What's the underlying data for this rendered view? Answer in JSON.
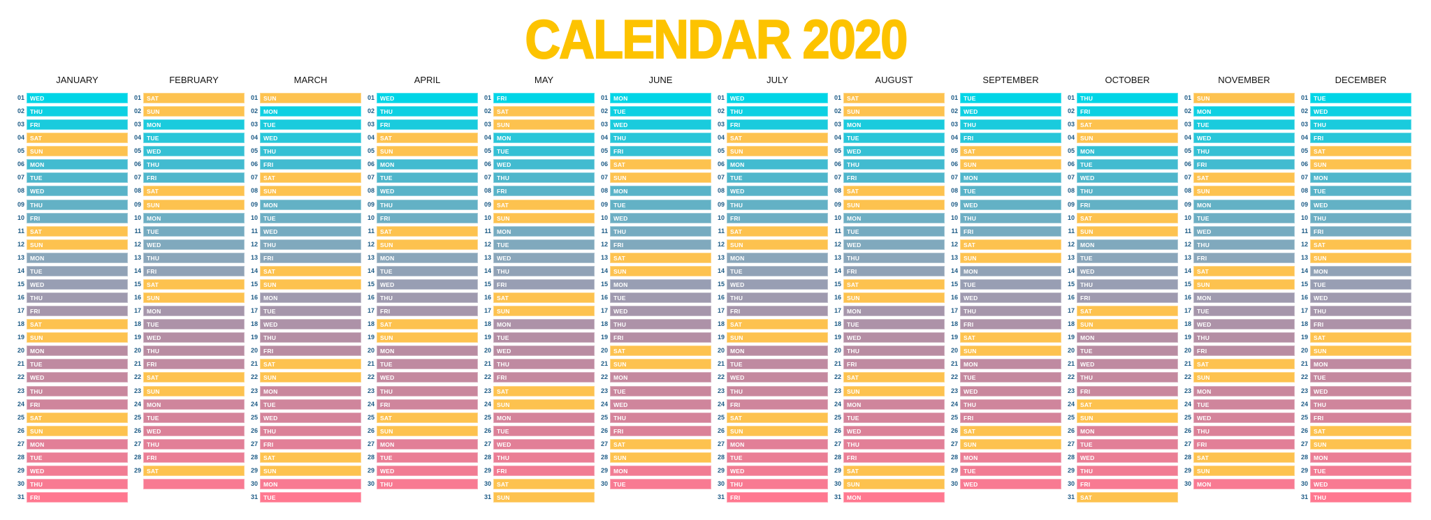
{
  "title": "CALENDAR 2020",
  "colors": {
    "title": "#fdc300",
    "weekend": "#fdc24f",
    "weekday_gradient": [
      "#00d5e6",
      "#4fb6cb",
      "#8aa6ba",
      "#b48ea4",
      "#d4839a",
      "#ff7890"
    ],
    "day_number": "#1d5b86"
  },
  "numbers": [
    "01",
    "02",
    "03",
    "04",
    "05",
    "06",
    "07",
    "08",
    "09",
    "10",
    "11",
    "12",
    "13",
    "14",
    "15",
    "16",
    "17",
    "18",
    "19",
    "20",
    "21",
    "22",
    "23",
    "24",
    "25",
    "26",
    "27",
    "28",
    "29",
    "30",
    "31"
  ],
  "months": [
    {
      "name": "JANUARY",
      "days": [
        "WED",
        "THU",
        "FRI",
        "SAT",
        "SUN",
        "MON",
        "TUE",
        "WED",
        "THU",
        "FRI",
        "SAT",
        "SUN",
        "MON",
        "TUE",
        "WED",
        "THU",
        "FRI",
        "SAT",
        "SUN",
        "MON",
        "TUE",
        "WED",
        "THU",
        "FRI",
        "SAT",
        "SUN",
        "MON",
        "TUE",
        "WED",
        "THU",
        "FRI"
      ]
    },
    {
      "name": "FEBRUARY",
      "days": [
        "SAT",
        "SUN",
        "MON",
        "TUE",
        "WED",
        "THU",
        "FRI",
        "SAT",
        "SUN",
        "MON",
        "TUE",
        "WED",
        "THU",
        "FRI",
        "SAT",
        "SUN",
        "MON",
        "TUE",
        "WED",
        "THU",
        "FRI",
        "SAT",
        "SUN",
        "MON",
        "TUE",
        "WED",
        "THU",
        "FRI",
        "SAT",
        ""
      ]
    },
    {
      "name": "MARCH",
      "days": [
        "SUN",
        "MON",
        "TUE",
        "WED",
        "THU",
        "FRI",
        "SAT",
        "SUN",
        "MON",
        "TUE",
        "WED",
        "THU",
        "FRI",
        "SAT",
        "SUN",
        "MON",
        "TUE",
        "WED",
        "THU",
        "FRI",
        "SAT",
        "SUN",
        "MON",
        "TUE",
        "WED",
        "THU",
        "FRI",
        "SAT",
        "SUN",
        "MON",
        "TUE"
      ]
    },
    {
      "name": "APRIL",
      "days": [
        "WED",
        "THU",
        "FRI",
        "SAT",
        "SUN",
        "MON",
        "TUE",
        "WED",
        "THU",
        "FRI",
        "SAT",
        "SUN",
        "MON",
        "TUE",
        "WED",
        "THU",
        "FRI",
        "SAT",
        "SUN",
        "MON",
        "TUE",
        "WED",
        "THU",
        "FRI",
        "SAT",
        "SUN",
        "MON",
        "TUE",
        "WED",
        "THU"
      ]
    },
    {
      "name": "MAY",
      "days": [
        "FRI",
        "SAT",
        "SUN",
        "MON",
        "TUE",
        "WED",
        "THU",
        "FRI",
        "SAT",
        "SUN",
        "MON",
        "TUE",
        "WED",
        "THU",
        "FRI",
        "SAT",
        "SUN",
        "MON",
        "TUE",
        "WED",
        "THU",
        "FRI",
        "SAT",
        "SUN",
        "MON",
        "TUE",
        "WED",
        "THU",
        "FRI",
        "SAT",
        "SUN"
      ]
    },
    {
      "name": "JUNE",
      "days": [
        "MON",
        "TUE",
        "WED",
        "THU",
        "FRI",
        "SAT",
        "SUN",
        "MON",
        "TUE",
        "WED",
        "THU",
        "FRI",
        "SAT",
        "SUN",
        "MON",
        "TUE",
        "WED",
        "THU",
        "FRI",
        "SAT",
        "SUN",
        "MON",
        "TUE",
        "WED",
        "THU",
        "FRI",
        "SAT",
        "SUN",
        "MON",
        "TUE"
      ]
    },
    {
      "name": "JULY",
      "days": [
        "WED",
        "THU",
        "FRI",
        "SAT",
        "SUN",
        "MON",
        "TUE",
        "WED",
        "THU",
        "FRI",
        "SAT",
        "SUN",
        "MON",
        "TUE",
        "WED",
        "THU",
        "FRI",
        "SAT",
        "SUN",
        "MON",
        "TUE",
        "WED",
        "THU",
        "FRI",
        "SAT",
        "SUN",
        "MON",
        "TUE",
        "WED",
        "THU",
        "FRI"
      ]
    },
    {
      "name": "AUGUST",
      "days": [
        "SAT",
        "SUN",
        "MON",
        "TUE",
        "WED",
        "THU",
        "FRI",
        "SAT",
        "SUN",
        "MON",
        "TUE",
        "WED",
        "THU",
        "FRI",
        "SAT",
        "SUN",
        "MON",
        "TUE",
        "WED",
        "THU",
        "FRI",
        "SAT",
        "SUN",
        "MON",
        "TUE",
        "WED",
        "THU",
        "FRI",
        "SAT",
        "SUN",
        "MON"
      ]
    },
    {
      "name": "SEPTEMBER",
      "days": [
        "TUE",
        "WED",
        "THU",
        "FRI",
        "SAT",
        "SUN",
        "MON",
        "TUE",
        "WED",
        "THU",
        "FRI",
        "SAT",
        "SUN",
        "MON",
        "TUE",
        "WED",
        "THU",
        "FRI",
        "SAT",
        "SUN",
        "MON",
        "TUE",
        "WED",
        "THU",
        "FRI",
        "SAT",
        "SUN",
        "MON",
        "TUE",
        "WED"
      ]
    },
    {
      "name": "OCTOBER",
      "days": [
        "THU",
        "FRI",
        "SAT",
        "SUN",
        "MON",
        "TUE",
        "WED",
        "THU",
        "FRI",
        "SAT",
        "SUN",
        "MON",
        "TUE",
        "WED",
        "THU",
        "FRI",
        "SAT",
        "SUN",
        "MON",
        "TUE",
        "WED",
        "THU",
        "FRI",
        "SAT",
        "SUN",
        "MON",
        "TUE",
        "WED",
        "THU",
        "FRI",
        "SAT"
      ]
    },
    {
      "name": "NOVEMBER",
      "days": [
        "SUN",
        "MON",
        "TUE",
        "WED",
        "THU",
        "FRI",
        "SAT",
        "SUN",
        "MON",
        "TUE",
        "WED",
        "THU",
        "FRI",
        "SAT",
        "SUN",
        "MON",
        "TUE",
        "WED",
        "THU",
        "FRI",
        "SAT",
        "SUN",
        "MON",
        "TUE",
        "WED",
        "THU",
        "FRI",
        "SAT",
        "SUN",
        "MON"
      ]
    },
    {
      "name": "DECEMBER",
      "days": [
        "TUE",
        "WED",
        "THU",
        "FRI",
        "SAT",
        "SUN",
        "MON",
        "TUE",
        "WED",
        "THU",
        "FRI",
        "SAT",
        "SUN",
        "MON",
        "TUE",
        "WED",
        "THU",
        "FRI",
        "SAT",
        "SUN",
        "MON",
        "TUE",
        "WED",
        "THU",
        "FRI",
        "SAT",
        "SUN",
        "MON",
        "TUE",
        "WED",
        "THU"
      ]
    }
  ]
}
